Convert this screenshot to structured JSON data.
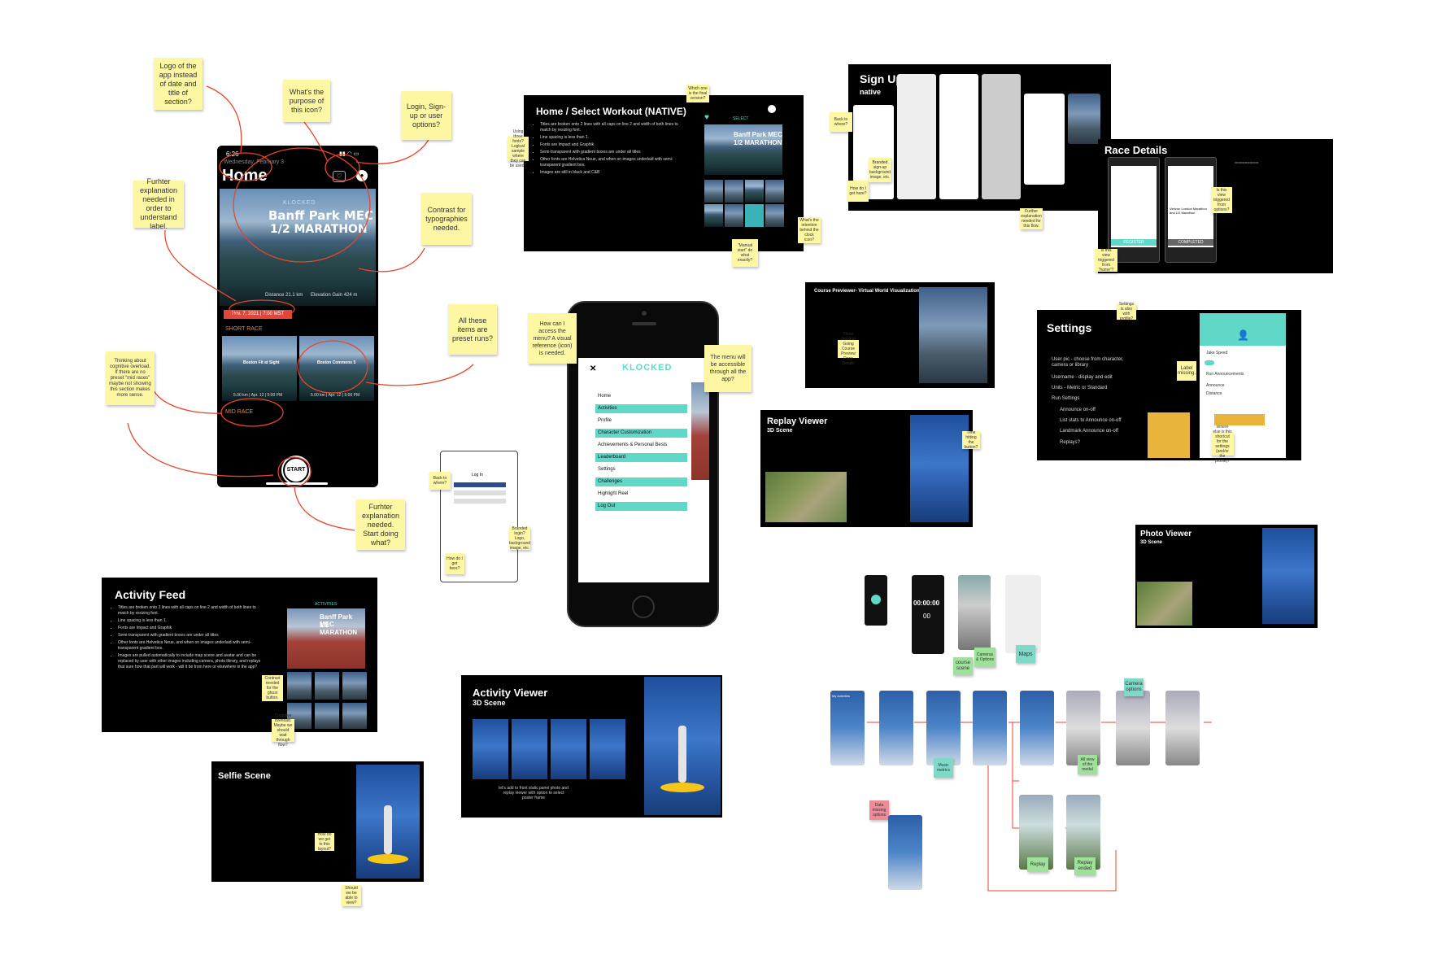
{
  "home_screen": {
    "status_time": "6:26",
    "date": "Wednesday, February 3",
    "title": "Home",
    "banner_brand": "KLOCKED",
    "banner_line1": "Banff Park MEC",
    "banner_line2": "1/2 MARATHON",
    "distance": "Distance 21.1 km",
    "elevation": "Elevation Gain 424 m",
    "race_date": "Nov. 7, 2021 | 7:00 MST",
    "short_race_label": "SHORT RACE",
    "card1_title": "Boston Fit at Sight",
    "card1_meta": "5.00 km | Apr. 12 | 5:00 PM",
    "card2_title": "Boston Commons 5",
    "card2_meta": "5.00 km | Apr. 12 | 5:00 PM",
    "mid_race_label": "MID RACE",
    "start_label": "START"
  },
  "home_notes": {
    "logo": "Logo of the app instead of date and title of section?",
    "icon_purpose": "What's the purpose of this icon?",
    "login": "Login, Sign-up or user options?",
    "further_label": "Furhter explanation needed in order to understand label.",
    "contrast": "Contrast for typographies needed.",
    "preset": "All these items are preset runs?",
    "cognitive": "Thinking about cognitive overload. If there are no preset \"mid races\" maybe not showing this section makes more sense.",
    "start": "Furhter explanation needed. Start doing what?"
  },
  "home_select": {
    "title": "Home / Select Workout (NATIVE)",
    "select_label": "SELECT",
    "banner_line1": "Banff Park MEC",
    "banner_line2": "1/2 MARATHON",
    "bullets": [
      "Titles are broken onto 2 lines with all caps on line 2 and width of both lines to match by resizing font.",
      "Line spacing is less than 1.",
      "Fonts are Impact and Graphik",
      "Semi-transparent with gradient boxes are under all titles",
      "Other fonts are Helvetica Neue, and when on images underlaid with semi-transparent gradient box.",
      "Images are still in black and C&B"
    ],
    "note_final": "Which one is the final version?",
    "note_using": "Using three fonts? Logical sample where they can be used?",
    "note_intention": "What's the intention behind the clock icon?",
    "note_manual": "\"Manual start\" do what exactly?"
  },
  "signup": {
    "title": "Sign Up",
    "subtitle": "native",
    "note_back": "Back to where?",
    "note_how": "How do I get here?",
    "note_branded": "Branded sign-up background image, etc.",
    "note_further": "Further explanation needed for this flow."
  },
  "race_details": {
    "title": "Race Details",
    "register": "REGISTER",
    "completed": "COMPLETED",
    "race_name": "Verizon London Marathon and 1/2 Marathon",
    "note_triggered": "Is this view triggered from \"home\"?",
    "note_option": "Is this view triggered from options?"
  },
  "course_previewer": {
    "title": "Course Previewer- Virtual World Visualization",
    "note_reference": "Three decimal Going Course Preview Race Details"
  },
  "settings": {
    "title": "Settings",
    "items": [
      "User pic - choose from character, camera or library",
      "Username - display and edit",
      "Units - Metric or Standard",
      "Run Settings",
      "Announce on-off",
      "List stats to Announce on-off",
      "Landmark Announce on-off",
      "Replays?"
    ],
    "panel_items": [
      "Jake Speed",
      "Run Announcements",
      "Announce",
      "Distance"
    ],
    "note_profile": "Settings is also with profile?",
    "note_label": "Label missing.",
    "note_shortcut": "Where else is this shortcut for the settings (and/or the profile)?"
  },
  "menu_phone": {
    "logo": "KLOCKED",
    "close": "✕",
    "items": [
      "Home",
      "Activities",
      "Profile",
      "Character Customization",
      "Achievements & Personal Bests",
      "Leaderboard",
      "Settings",
      "Challenges",
      "Highlight Reel",
      "Log Out"
    ],
    "note_access": "How can I access the menu? A visual reference (icon) is needed.",
    "note_accessible": "The menu will be accessible through all the app?"
  },
  "login_phone": {
    "title": "Log In",
    "note_back": "Back to where?",
    "note_how": "How do I get here?",
    "note_branded": "Branded login? Logo, background image, etc."
  },
  "replay_viewer": {
    "title": "Replay Viewer",
    "subtitle": "3D Scene",
    "note_see": "Time hitting the button?"
  },
  "photo_viewer": {
    "title": "Photo Viewer",
    "subtitle": "3D Scene"
  },
  "activity_feed": {
    "title": "Activity Feed",
    "activities_label": "ACTIVITIES",
    "banner_line1": "Banff Park MEC",
    "banner_line2": "1/2 MARATHON",
    "bullets": [
      "Titles are broken onto 2 lines with all caps on line 2 and width of both lines to match by resizing font.",
      "Line spacing is less than 1.",
      "Fonts are Impact and Graphik",
      "Semi-transparent with gradient boxes are under all titles",
      "Other fonts are Helvetica Neue, and when on images underlaid with semi-transparent gradient box.",
      "Images are pulled automatically to include map scene and avatar and can be replaced by user with other images including camera, photo library, and replays that sure how that part will work - will it be from here or elsewhere in the app?"
    ],
    "note_contrast": "Contrast needed for the ghost button.",
    "note_cognitive": "Cognitive overload. Maybe we should wait through flow?"
  },
  "selfie_scene": {
    "title": "Selfie Scene",
    "note_how": "How do we get to this layout?",
    "note_should": "Should we be able to view?"
  },
  "activity_viewer": {
    "title": "Activity Viewer",
    "subtitle": "3D Scene",
    "caption": "let's add to front static panel photo and replay viewer with option to select poster frame"
  },
  "flow": {
    "labels": {
      "course_scene": "course scene",
      "maps": "Maps",
      "cameras_options": "Cameras & Options",
      "all_view_medal": "All view of the medal",
      "music_metrics": "Music metrics",
      "replay": "Replay",
      "replay_ended": "Replay ended",
      "camera_options": "Camera options",
      "time_display": "00:00:00",
      "time_small": "00",
      "my_activities": "My Activities",
      "data_missing": "Data missing options"
    }
  },
  "colors": {
    "sticky_yellow": "#fdf6a3",
    "annotation_red": "#e8452c",
    "brand_teal": "#5fd8c8",
    "race_red": "#e2463a",
    "race_orange": "#e88a3a"
  }
}
